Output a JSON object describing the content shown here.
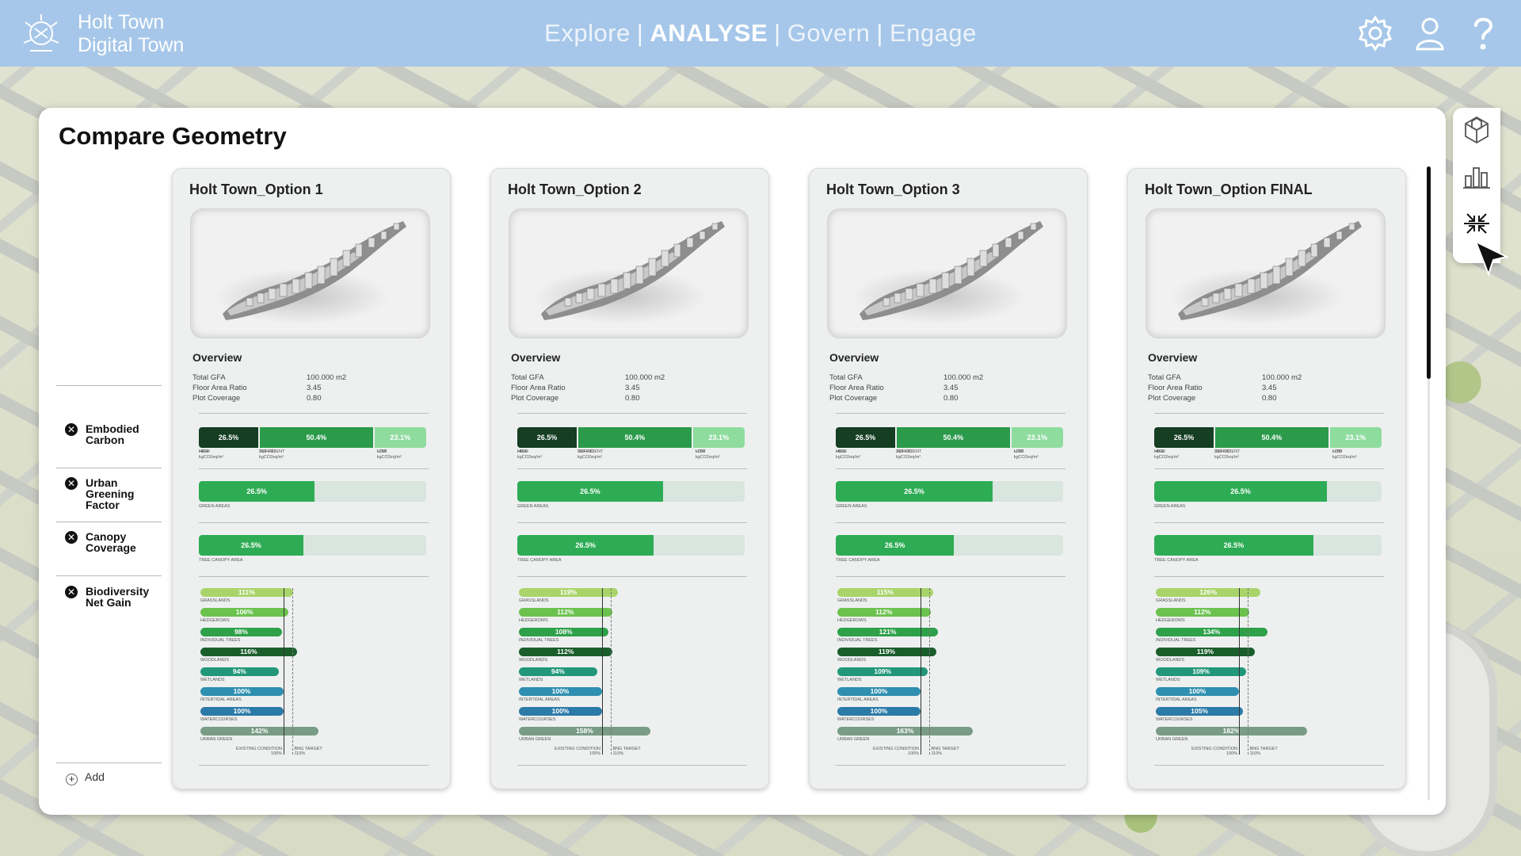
{
  "header": {
    "app_title_line1": "Holt Town",
    "app_title_line2": "Digital Town",
    "nav": [
      "Explore",
      "ANALYSE",
      "Govern",
      "Engage"
    ],
    "active_nav": "ANALYSE",
    "icons": [
      "crest-logo-icon",
      "gear-icon",
      "user-icon",
      "help-icon"
    ],
    "color": "#a6c7e9"
  },
  "panel": {
    "title": "Compare Geometry",
    "add_label": "Add",
    "metrics": [
      "Embodied\nCarbon",
      "Urban\nGreening\nFactor",
      "Canopy\nCoverage",
      "Biodiversity\nNet Gain"
    ]
  },
  "overview_labels": {
    "title": "Overview",
    "total_gfa": "Total GFA",
    "far": "Floor Area Ratio",
    "plot": "Plot Coverage"
  },
  "carbon_labels": {
    "high": "HIGH",
    "high_sub": ">600 kgCO2eq/m²",
    "sufficient": "SUFFICIENT",
    "sufficient_sub": "200-600 kgCO2eq/m²",
    "low": "LOW",
    "low_sub": "<200 kgCO2eq/m²"
  },
  "sub_labels": {
    "green_areas": "GREEN AREAS",
    "tree_canopy": "TREE CANOPY AREA",
    "existing": "EXISTING CONDITION",
    "existing_pct": "100%",
    "bng_target": "BNG TARGET",
    "bng_target_pct": "110%"
  },
  "bng_categories": [
    "GRASSLANDS",
    "HEDGEROWS",
    "INDIVIDUAL TREES",
    "WOODLANDS",
    "WETLANDS",
    "INTERTIDAL AREAS",
    "WATERCOURSES",
    "URBAN GREEN"
  ],
  "bng_colors": [
    "#a9d46a",
    "#6cc24f",
    "#2fa14a",
    "#1a5e2c",
    "#22977a",
    "#2f8fb0",
    "#2b7aa8",
    "#7a9c86"
  ],
  "carbon_colors": [
    "#153e23",
    "#2b9a4b",
    "#8fdc9f"
  ],
  "cards": [
    {
      "title": "Holt Town_Option 1",
      "gfa": "100.000 m2",
      "far": "3.45",
      "plot": "0.80",
      "carbon": [
        {
          "label": "26.5%",
          "value": 26.5
        },
        {
          "label": "50.4%",
          "value": 50.4
        },
        {
          "label": "23.1%",
          "value": 23.1
        }
      ],
      "ugf": {
        "label": "26.5%",
        "value": 0.51
      },
      "canopy": {
        "label": "26.5%",
        "value": 0.46
      },
      "bng": [
        {
          "label": "111%",
          "value": 111
        },
        {
          "label": "106%",
          "value": 106
        },
        {
          "label": "98%",
          "value": 98
        },
        {
          "label": "116%",
          "value": 116
        },
        {
          "label": "94%",
          "value": 94
        },
        {
          "label": "100%",
          "value": 100
        },
        {
          "label": "100%",
          "value": 100
        },
        {
          "label": "142%",
          "value": 142
        }
      ]
    },
    {
      "title": "Holt Town_Option 2",
      "gfa": "100.000 m2",
      "far": "3.45",
      "plot": "0.80",
      "carbon": [
        {
          "label": "26.5%",
          "value": 26.5
        },
        {
          "label": "50.4%",
          "value": 50.4
        },
        {
          "label": "23.1%",
          "value": 23.1
        }
      ],
      "ugf": {
        "label": "26.5%",
        "value": 0.64
      },
      "canopy": {
        "label": "26.5%",
        "value": 0.6
      },
      "bng": [
        {
          "label": "119%",
          "value": 119
        },
        {
          "label": "112%",
          "value": 112
        },
        {
          "label": "108%",
          "value": 108
        },
        {
          "label": "112%",
          "value": 112
        },
        {
          "label": "94%",
          "value": 94
        },
        {
          "label": "100%",
          "value": 100
        },
        {
          "label": "100%",
          "value": 100
        },
        {
          "label": "158%",
          "value": 158
        }
      ]
    },
    {
      "title": "Holt Town_Option 3",
      "gfa": "100.000 m2",
      "far": "3.45",
      "plot": "0.80",
      "carbon": [
        {
          "label": "26.5%",
          "value": 26.5
        },
        {
          "label": "50.4%",
          "value": 50.4
        },
        {
          "label": "23.1%",
          "value": 23.1
        }
      ],
      "ugf": {
        "label": "26.5%",
        "value": 0.69
      },
      "canopy": {
        "label": "26.5%",
        "value": 0.52
      },
      "bng": [
        {
          "label": "115%",
          "value": 115
        },
        {
          "label": "112%",
          "value": 112
        },
        {
          "label": "121%",
          "value": 121
        },
        {
          "label": "119%",
          "value": 119
        },
        {
          "label": "109%",
          "value": 109
        },
        {
          "label": "100%",
          "value": 100
        },
        {
          "label": "100%",
          "value": 100
        },
        {
          "label": "163%",
          "value": 163
        }
      ]
    },
    {
      "title": "Holt Town_Option FINAL",
      "gfa": "100.000 m2",
      "far": "3.45",
      "plot": "0.80",
      "carbon": [
        {
          "label": "26.5%",
          "value": 26.5
        },
        {
          "label": "50.4%",
          "value": 50.4
        },
        {
          "label": "23.1%",
          "value": 23.1
        }
      ],
      "ugf": {
        "label": "26.5%",
        "value": 0.76
      },
      "canopy": {
        "label": "26.5%",
        "value": 0.7
      },
      "bng": [
        {
          "label": "126%",
          "value": 126
        },
        {
          "label": "112%",
          "value": 112
        },
        {
          "label": "134%",
          "value": 134
        },
        {
          "label": "119%",
          "value": 119
        },
        {
          "label": "109%",
          "value": 109
        },
        {
          "label": "100%",
          "value": 100
        },
        {
          "label": "105%",
          "value": 105
        },
        {
          "label": "182%",
          "value": 182
        }
      ]
    }
  ],
  "toolbar": [
    "3d-model-icon",
    "bar-chart-icon",
    "compare-icon"
  ]
}
